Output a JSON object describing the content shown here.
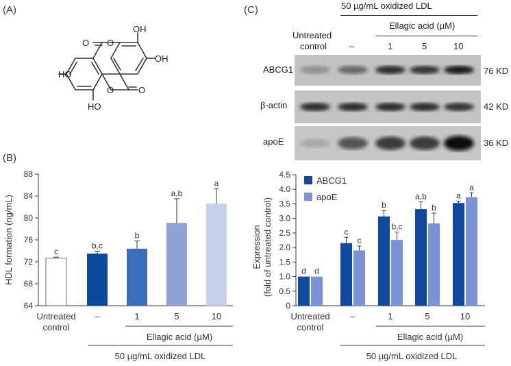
{
  "panels": {
    "a": "(A)",
    "b": "(B)",
    "c": "(C)"
  },
  "molecule": {
    "atom_labels": [
      "OH",
      "OH",
      "HO",
      "HO",
      "O",
      "O",
      "O",
      "O"
    ]
  },
  "western_blot": {
    "treatment": "50 µg/mL oxidized LDL",
    "ellagic": "Ellagic acid (µM)",
    "untreated": [
      "Untreated",
      "control"
    ],
    "lanes": [
      "–",
      "1",
      "5",
      "10"
    ],
    "bands": [
      {
        "name": "ABCG1",
        "size": "76 KD",
        "intensity": [
          0.25,
          0.5,
          0.85,
          0.8,
          0.95
        ]
      },
      {
        "name": "β-actin",
        "size": "42 KD",
        "intensity": [
          0.85,
          0.85,
          0.85,
          0.85,
          0.8
        ]
      },
      {
        "name": "apoE",
        "size": "36 KD",
        "intensity": [
          0.12,
          0.6,
          0.75,
          0.75,
          1.0
        ]
      }
    ]
  },
  "chart_data": [
    {
      "type": "bar",
      "ylabel": "HDL formation (ng/mL)",
      "ylim": [
        64,
        88
      ],
      "yticks": [
        64,
        68,
        72,
        76,
        80,
        84,
        88
      ],
      "categories": [
        "Untreated control",
        "–",
        "1",
        "5",
        "10"
      ],
      "values": [
        72.7,
        73.5,
        74.4,
        79.1,
        82.6
      ],
      "errors": [
        0.15,
        0.45,
        1.4,
        4.4,
        2.7
      ],
      "labels": [
        "c",
        "b,c",
        "b",
        "a,b",
        "a"
      ],
      "colors": [
        "#ffffff",
        "#0b4a9e",
        "#3a6fbc",
        "#8fa2d6",
        "#c9d0ea"
      ],
      "group_labels": {
        "untreated": [
          "Untreated",
          "control"
        ],
        "ellagic": "Ellagic acid (µM)",
        "treatment": "50 µg/mL oxidized LDL"
      }
    },
    {
      "type": "bar",
      "ylabel": [
        "Expression",
        "(fold of untreated control)"
      ],
      "ylim": [
        0,
        4.5
      ],
      "yticks": [
        "0",
        "0.5",
        "1.0",
        "1.5",
        "2.0",
        "2.5",
        "3.0",
        "3.5",
        "4.0",
        "4.5"
      ],
      "categories": [
        "Untreated control",
        "–",
        "1",
        "5",
        "10"
      ],
      "legend": "top-left",
      "series": [
        {
          "name": "ABCG1",
          "color": "#0e4aa0",
          "values": [
            1.0,
            2.15,
            3.07,
            3.32,
            3.53
          ],
          "errors": [
            0.0,
            0.2,
            0.2,
            0.25,
            0.06
          ],
          "labels": [
            "d",
            "c",
            "b",
            "a,b",
            "a"
          ]
        },
        {
          "name": "apoE",
          "color": "#7b93d6",
          "values": [
            1.0,
            1.9,
            2.26,
            2.83,
            3.73
          ],
          "errors": [
            0.0,
            0.15,
            0.27,
            0.35,
            0.15
          ],
          "labels": [
            "d",
            "c",
            "b,c",
            "b",
            "a"
          ]
        }
      ],
      "group_labels": {
        "untreated": [
          "Untreated",
          "control"
        ],
        "ellagic": "Ellagic acid (µM)",
        "treatment": "50 µg/mL oxidized LDL"
      }
    }
  ]
}
